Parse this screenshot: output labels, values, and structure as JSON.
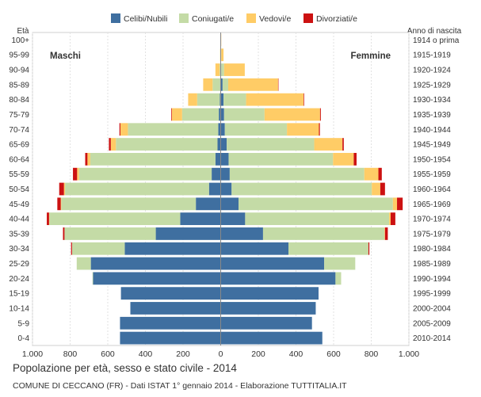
{
  "chart_data": {
    "type": "bar",
    "orientation": "horizontal-population-pyramid",
    "title": "Popolazione per età, sesso e stato civile - 2014",
    "subtitle": "COMUNE DI CECCANO (FR) - Dati ISTAT 1° gennaio 2014 - Elaborazione TUTTITALIA.IT",
    "left_axis_title": "Età",
    "right_axis_title": "Anno di nascita",
    "left_side_label": "Maschi",
    "right_side_label": "Femmine",
    "x_ticks": [
      "1.000",
      "800",
      "600",
      "400",
      "200",
      "0",
      "200",
      "400",
      "600",
      "800",
      "1.000"
    ],
    "xlim": [
      -1000,
      1000
    ],
    "legend": [
      {
        "name": "Celibi/Nubili",
        "color": "#3f6fa0"
      },
      {
        "name": "Coniugati/e",
        "color": "#c4dba6"
      },
      {
        "name": "Vedovi/e",
        "color": "#ffcc66"
      },
      {
        "name": "Divorziati/e",
        "color": "#cc1111"
      }
    ],
    "categories": [
      "100+",
      "95-99",
      "90-94",
      "85-89",
      "80-84",
      "75-79",
      "70-74",
      "65-69",
      "60-64",
      "55-59",
      "50-54",
      "45-49",
      "40-44",
      "35-39",
      "30-34",
      "25-29",
      "20-24",
      "15-19",
      "10-14",
      "5-9",
      "0-4"
    ],
    "birth_years": [
      "1914 o prima",
      "1915-1919",
      "1920-1924",
      "1925-1929",
      "1930-1934",
      "1935-1939",
      "1940-1944",
      "1945-1949",
      "1950-1954",
      "1955-1959",
      "1960-1964",
      "1965-1969",
      "1970-1974",
      "1975-1979",
      "1980-1984",
      "1985-1989",
      "1990-1994",
      "1995-1999",
      "2000-2004",
      "2005-2009",
      "2010-2014"
    ],
    "males": {
      "Celibi/Nubili": [
        0,
        0,
        1,
        3,
        5,
        10,
        13,
        17,
        28,
        48,
        62,
        132,
        215,
        345,
        510,
        690,
        678,
        530,
        480,
        535,
        535
      ],
      "Coniugati/e": [
        0,
        1,
        5,
        40,
        120,
        195,
        480,
        540,
        665,
        705,
        765,
        715,
        695,
        485,
        280,
        75,
        3,
        0,
        0,
        0,
        0
      ],
      "Vedovi/e": [
        1,
        2,
        22,
        50,
        48,
        55,
        40,
        27,
        15,
        10,
        6,
        3,
        2,
        0,
        0,
        0,
        0,
        0,
        0,
        0,
        0
      ],
      "Divorziati/e": [
        0,
        0,
        0,
        0,
        0,
        3,
        5,
        10,
        12,
        22,
        25,
        18,
        12,
        8,
        5,
        0,
        0,
        0,
        0,
        0,
        0
      ]
    },
    "females": {
      "Celibi/Nubili": [
        0,
        0,
        3,
        10,
        15,
        18,
        22,
        32,
        42,
        48,
        58,
        95,
        130,
        225,
        360,
        550,
        610,
        520,
        505,
        485,
        540
      ],
      "Coniugati/e": [
        0,
        3,
        15,
        30,
        120,
        215,
        330,
        465,
        555,
        715,
        745,
        820,
        765,
        645,
        425,
        165,
        30,
        0,
        0,
        0,
        0
      ],
      "Vedovi/e": [
        3,
        12,
        110,
        265,
        305,
        295,
        170,
        150,
        110,
        75,
        45,
        22,
        8,
        3,
        0,
        0,
        0,
        0,
        0,
        0,
        0
      ],
      "Divorziati/e": [
        0,
        0,
        0,
        2,
        3,
        4,
        5,
        7,
        15,
        18,
        25,
        30,
        25,
        15,
        5,
        0,
        0,
        0,
        0,
        0,
        0
      ]
    }
  }
}
